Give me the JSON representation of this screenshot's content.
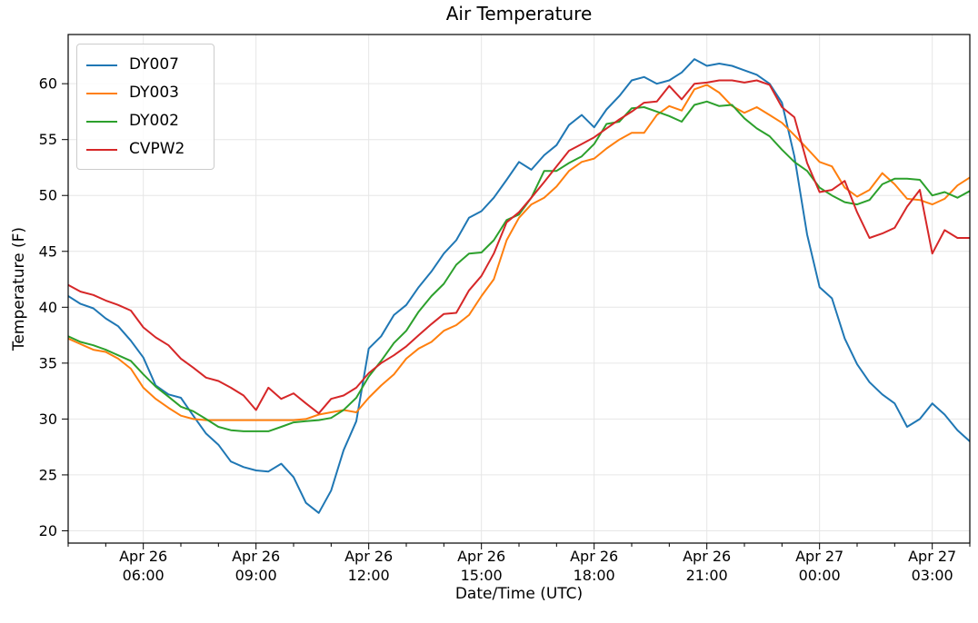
{
  "title": "Air Temperature",
  "chart_data": {
    "type": "line",
    "title": "Air Temperature",
    "xlabel": "Date/Time (UTC)",
    "ylabel": "Temperature (F)",
    "grid": true,
    "legend_position": "upper left",
    "x_axis_note": "hours after Apr 26 00:00 UTC",
    "xlim_hours": [
      4.0,
      28.0
    ],
    "ylim": [
      18.9,
      64.4
    ],
    "y_ticks": [
      20,
      25,
      30,
      35,
      40,
      45,
      50,
      55,
      60
    ],
    "x_tick_hours": [
      6,
      9,
      12,
      15,
      18,
      21,
      24,
      27
    ],
    "x_tick_labels": [
      [
        "Apr 26",
        "06:00"
      ],
      [
        "Apr 26",
        "09:00"
      ],
      [
        "Apr 26",
        "12:00"
      ],
      [
        "Apr 26",
        "15:00"
      ],
      [
        "Apr 26",
        "18:00"
      ],
      [
        "Apr 26",
        "21:00"
      ],
      [
        "Apr 27",
        "00:00"
      ],
      [
        "Apr 27",
        "03:00"
      ]
    ],
    "x_minor_tick_every_hours": 1,
    "x_hours": [
      4,
      4.33,
      4.67,
      5,
      5.33,
      5.67,
      6,
      6.33,
      6.67,
      7,
      7.33,
      7.67,
      8,
      8.33,
      8.67,
      9,
      9.33,
      9.67,
      10,
      10.33,
      10.67,
      11,
      11.33,
      11.67,
      12,
      12.33,
      12.67,
      13,
      13.33,
      13.67,
      14,
      14.33,
      14.67,
      15,
      15.33,
      15.67,
      16,
      16.33,
      16.67,
      17,
      17.33,
      17.67,
      18,
      18.33,
      18.67,
      19,
      19.33,
      19.67,
      20,
      20.33,
      20.67,
      21,
      21.33,
      21.67,
      22,
      22.33,
      22.67,
      23,
      23.33,
      23.67,
      24,
      24.33,
      24.67,
      25,
      25.33,
      25.67,
      26,
      26.33,
      26.67,
      27,
      27.33,
      27.67,
      28
    ],
    "series": [
      {
        "name": "DY007",
        "color": "#1f77b4",
        "values": [
          41.0,
          40.3,
          39.9,
          39.0,
          38.3,
          37.0,
          35.5,
          33.0,
          32.2,
          31.9,
          30.3,
          28.7,
          27.7,
          26.2,
          25.7,
          25.4,
          25.3,
          26.0,
          24.8,
          22.5,
          21.6,
          23.6,
          27.2,
          29.8,
          36.3,
          37.4,
          39.3,
          40.2,
          41.8,
          43.2,
          44.8,
          46.0,
          48.0,
          48.6,
          49.8,
          51.4,
          53.0,
          52.3,
          53.6,
          54.5,
          56.3,
          57.2,
          56.1,
          57.7,
          58.9,
          60.3,
          60.6,
          60.0,
          60.3,
          61.0,
          62.2,
          61.6,
          61.8,
          61.6,
          61.2,
          60.8,
          60.0,
          58.3,
          53.5,
          46.5,
          41.8,
          40.8,
          37.2,
          34.9,
          33.3,
          32.2,
          31.4,
          29.3,
          30.0,
          31.4,
          30.4,
          29.0,
          28.0
        ]
      },
      {
        "name": "DY003",
        "color": "#ff7f0e",
        "values": [
          37.2,
          36.7,
          36.2,
          36.0,
          35.4,
          34.5,
          32.8,
          31.8,
          31.0,
          30.3,
          30.0,
          29.9,
          29.9,
          29.9,
          29.9,
          29.9,
          29.9,
          29.9,
          29.9,
          30.0,
          30.4,
          30.6,
          30.8,
          30.6,
          31.9,
          33.0,
          34.0,
          35.4,
          36.3,
          36.9,
          37.9,
          38.4,
          39.3,
          41.0,
          42.5,
          46.0,
          48.0,
          49.2,
          49.8,
          50.8,
          52.2,
          53.0,
          53.3,
          54.2,
          55.0,
          55.6,
          55.6,
          57.2,
          58.0,
          57.6,
          59.5,
          59.9,
          59.2,
          58.0,
          57.4,
          57.9,
          57.2,
          56.5,
          55.4,
          54.2,
          53.0,
          52.6,
          50.7,
          49.9,
          50.5,
          52.0,
          51.0,
          49.7,
          49.6,
          49.2,
          49.7,
          50.9,
          51.6
        ]
      },
      {
        "name": "DY002",
        "color": "#2ca02c",
        "values": [
          37.4,
          36.9,
          36.6,
          36.2,
          35.7,
          35.2,
          34.0,
          32.9,
          32.0,
          31.1,
          30.7,
          30.0,
          29.3,
          29.0,
          28.9,
          28.9,
          28.9,
          29.3,
          29.7,
          29.8,
          29.9,
          30.1,
          30.8,
          31.9,
          33.8,
          35.2,
          36.8,
          37.9,
          39.6,
          41.0,
          42.1,
          43.8,
          44.8,
          44.9,
          46.0,
          47.8,
          48.3,
          49.8,
          52.2,
          52.2,
          52.9,
          53.5,
          54.6,
          56.4,
          56.6,
          57.8,
          57.9,
          57.5,
          57.1,
          56.6,
          58.1,
          58.4,
          58.0,
          58.1,
          56.9,
          56.0,
          55.3,
          54.1,
          53.0,
          52.2,
          50.7,
          50.0,
          49.4,
          49.2,
          49.6,
          51.0,
          51.5,
          51.5,
          51.4,
          50.0,
          50.3,
          49.8,
          50.4
        ]
      },
      {
        "name": "CVPW2",
        "color": "#d62728",
        "values": [
          42.0,
          41.4,
          41.1,
          40.6,
          40.2,
          39.7,
          38.2,
          37.3,
          36.6,
          35.4,
          34.6,
          33.7,
          33.4,
          32.8,
          32.1,
          30.8,
          32.8,
          31.8,
          32.3,
          31.4,
          30.5,
          31.8,
          32.1,
          32.8,
          34.1,
          35.0,
          35.7,
          36.5,
          37.5,
          38.5,
          39.4,
          39.5,
          41.5,
          42.8,
          44.8,
          47.6,
          48.5,
          49.8,
          51.2,
          52.6,
          54.0,
          54.6,
          55.2,
          56.0,
          56.8,
          57.5,
          58.3,
          58.4,
          59.8,
          58.6,
          60.0,
          60.1,
          60.3,
          60.3,
          60.1,
          60.3,
          59.9,
          57.9,
          57.0,
          52.9,
          50.3,
          50.5,
          51.3,
          48.5,
          46.2,
          46.6,
          47.1,
          49.0,
          50.5,
          44.8,
          46.9,
          46.2,
          46.2
        ]
      }
    ],
    "style": {
      "grid_color": "#e6e6e6",
      "spine_color": "#000000",
      "background": "#ffffff",
      "line_width": 2
    }
  }
}
